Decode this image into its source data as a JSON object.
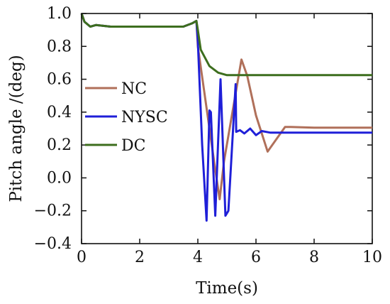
{
  "chart_data": {
    "type": "line",
    "title": "",
    "xlabel": "Time(s)",
    "ylabel": "Pitch angle /(deg)",
    "xlim": [
      0,
      10
    ],
    "ylim": [
      -0.4,
      1.0
    ],
    "x_ticks": [
      "0",
      "2",
      "4",
      "6",
      "8",
      "10"
    ],
    "y_ticks": [
      "1.0",
      "0.8",
      "0.6",
      "0.4",
      "0.2",
      "0.0",
      "−0.2",
      "−0.4"
    ],
    "grid": false,
    "legend_position": "left",
    "series": [
      {
        "name": "NC",
        "color": "#b0705a",
        "x": [
          0.0,
          0.1,
          0.3,
          0.5,
          1,
          2,
          3,
          3.5,
          3.8,
          3.95,
          4.0,
          4.4,
          4.6,
          4.75,
          4.9,
          5.5,
          5.7,
          6.0,
          6.4,
          7.0,
          7.2,
          8,
          9,
          10
        ],
        "y": [
          1.0,
          0.95,
          0.92,
          0.93,
          0.92,
          0.92,
          0.92,
          0.92,
          0.94,
          0.955,
          0.8,
          0.3,
          0.05,
          -0.13,
          0.1,
          0.72,
          0.62,
          0.38,
          0.16,
          0.31,
          0.31,
          0.305,
          0.305,
          0.305
        ]
      },
      {
        "name": "NYSC",
        "color": "#1f1fd8",
        "x": [
          0.0,
          0.1,
          0.3,
          0.5,
          1,
          2,
          3,
          3.5,
          3.8,
          3.95,
          4.0,
          4.15,
          4.3,
          4.4,
          4.45,
          4.6,
          4.78,
          4.95,
          5.05,
          5.3,
          5.32,
          5.45,
          5.6,
          5.8,
          6.0,
          6.2,
          6.5,
          7,
          8,
          9,
          10
        ],
        "y": [
          1.0,
          0.95,
          0.92,
          0.93,
          0.92,
          0.92,
          0.92,
          0.92,
          0.94,
          0.955,
          0.83,
          0.2,
          -0.26,
          0.41,
          0.4,
          -0.23,
          0.6,
          -0.23,
          -0.2,
          0.57,
          0.28,
          0.29,
          0.27,
          0.3,
          0.26,
          0.285,
          0.275,
          0.275,
          0.275,
          0.275,
          0.275
        ]
      },
      {
        "name": "DC",
        "color": "#3d6e1e",
        "x": [
          0.0,
          0.1,
          0.3,
          0.5,
          1,
          2,
          3,
          3.5,
          3.8,
          3.95,
          4.0,
          4.1,
          4.4,
          4.7,
          5.0,
          5.5,
          6,
          7,
          8,
          9,
          10
        ],
        "y": [
          1.0,
          0.95,
          0.92,
          0.93,
          0.92,
          0.92,
          0.92,
          0.92,
          0.94,
          0.955,
          0.9,
          0.78,
          0.68,
          0.64,
          0.625,
          0.625,
          0.625,
          0.625,
          0.625,
          0.625,
          0.625
        ]
      }
    ]
  }
}
